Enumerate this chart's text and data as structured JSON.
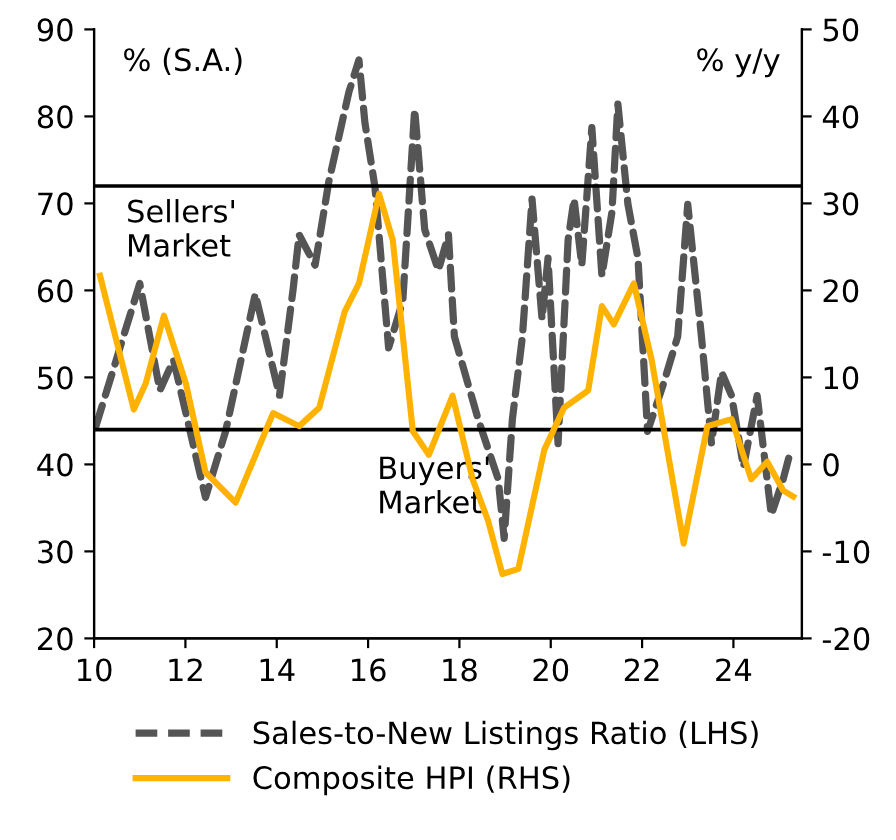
{
  "chart_data": {
    "type": "line",
    "series": [
      {
        "name": "Sales-to-New Listings Ratio (LHS)",
        "color": "#555555",
        "line_style": "dashed",
        "x": [
          10.04,
          11.0,
          11.44,
          11.74,
          12.44,
          12.88,
          13.53,
          14.06,
          14.36,
          14.49,
          14.84,
          15.14,
          15.58,
          15.8,
          15.93,
          16.15,
          16.45,
          16.76,
          17.02,
          17.24,
          17.54,
          17.76,
          17.89,
          18.41,
          18.85,
          18.98,
          19.16,
          19.38,
          19.59,
          19.81,
          19.94,
          20.16,
          20.38,
          20.51,
          20.68,
          20.9,
          21.12,
          21.34,
          21.47,
          21.69,
          21.91,
          22.12,
          22.47,
          22.78,
          23.0,
          23.3,
          23.52,
          23.74,
          23.96,
          24.22,
          24.52,
          24.83,
          25.09,
          25.26
        ],
        "values": [
          44.4,
          60.8,
          48.5,
          52,
          36.2,
          43.8,
          59.6,
          47.9,
          60.2,
          66.4,
          62.9,
          72.5,
          82.8,
          86.5,
          79.3,
          71.9,
          53.4,
          58.8,
          80.8,
          67,
          62.3,
          66.4,
          54.7,
          45.2,
          38.3,
          31.5,
          45.2,
          54.7,
          70.5,
          56.7,
          63.7,
          42.4,
          65.8,
          70.5,
          62.9,
          78.7,
          61.7,
          69,
          81.4,
          69.9,
          63.7,
          43.8,
          49.3,
          54.7,
          69.9,
          54.7,
          42.4,
          50.6,
          47.9,
          39.7,
          47.9,
          34.2,
          38.3,
          41.7
        ]
      },
      {
        "name": "Composite HPI (RHS)",
        "color": "#ffb300",
        "line_style": "solid",
        "axis": "y2",
        "x": [
          10.13,
          10.87,
          11.13,
          11.53,
          12.01,
          12.44,
          13.1,
          13.92,
          14.49,
          14.93,
          15.49,
          15.8,
          16.24,
          16.54,
          16.98,
          17.33,
          17.85,
          18.29,
          18.63,
          18.94,
          19.29,
          19.86,
          20.29,
          20.82,
          21.12,
          21.38,
          21.82,
          22.21,
          22.91,
          23.43,
          23.96,
          24.39,
          24.74,
          25.09,
          25.31
        ],
        "values": [
          21.7,
          6.3,
          9.3,
          17.1,
          9.3,
          -0.9,
          -4.4,
          5.9,
          4.4,
          6.5,
          17.6,
          20.8,
          31.1,
          25.8,
          3.8,
          1.1,
          7.9,
          -1.7,
          -6.5,
          -12.6,
          -12,
          1.7,
          6.5,
          8.5,
          18.2,
          16.1,
          20.8,
          12,
          -9.1,
          4.4,
          5.2,
          -1.7,
          0.3,
          -3,
          -3.7
        ]
      }
    ],
    "xlim": [
      10,
      25.5
    ],
    "xticks": [
      10,
      12,
      14,
      16,
      18,
      20,
      22,
      24
    ],
    "ylim": [
      20,
      90
    ],
    "yticks": [
      20,
      30,
      40,
      50,
      60,
      70,
      80,
      90
    ],
    "y2lim": [
      -20,
      50
    ],
    "y2ticks": [
      -20,
      -10,
      0,
      10,
      20,
      30,
      40,
      50
    ],
    "ref_lines": [
      {
        "axis": "y",
        "value": 72,
        "label": "Sellers' Market",
        "color": "#000000"
      },
      {
        "axis": "y",
        "value": 44,
        "label": "Buyers' Market",
        "color": "#000000"
      }
    ],
    "annotations": [
      "% (S.A.)",
      "% y/y"
    ],
    "grid": false,
    "legend": "bottom"
  }
}
